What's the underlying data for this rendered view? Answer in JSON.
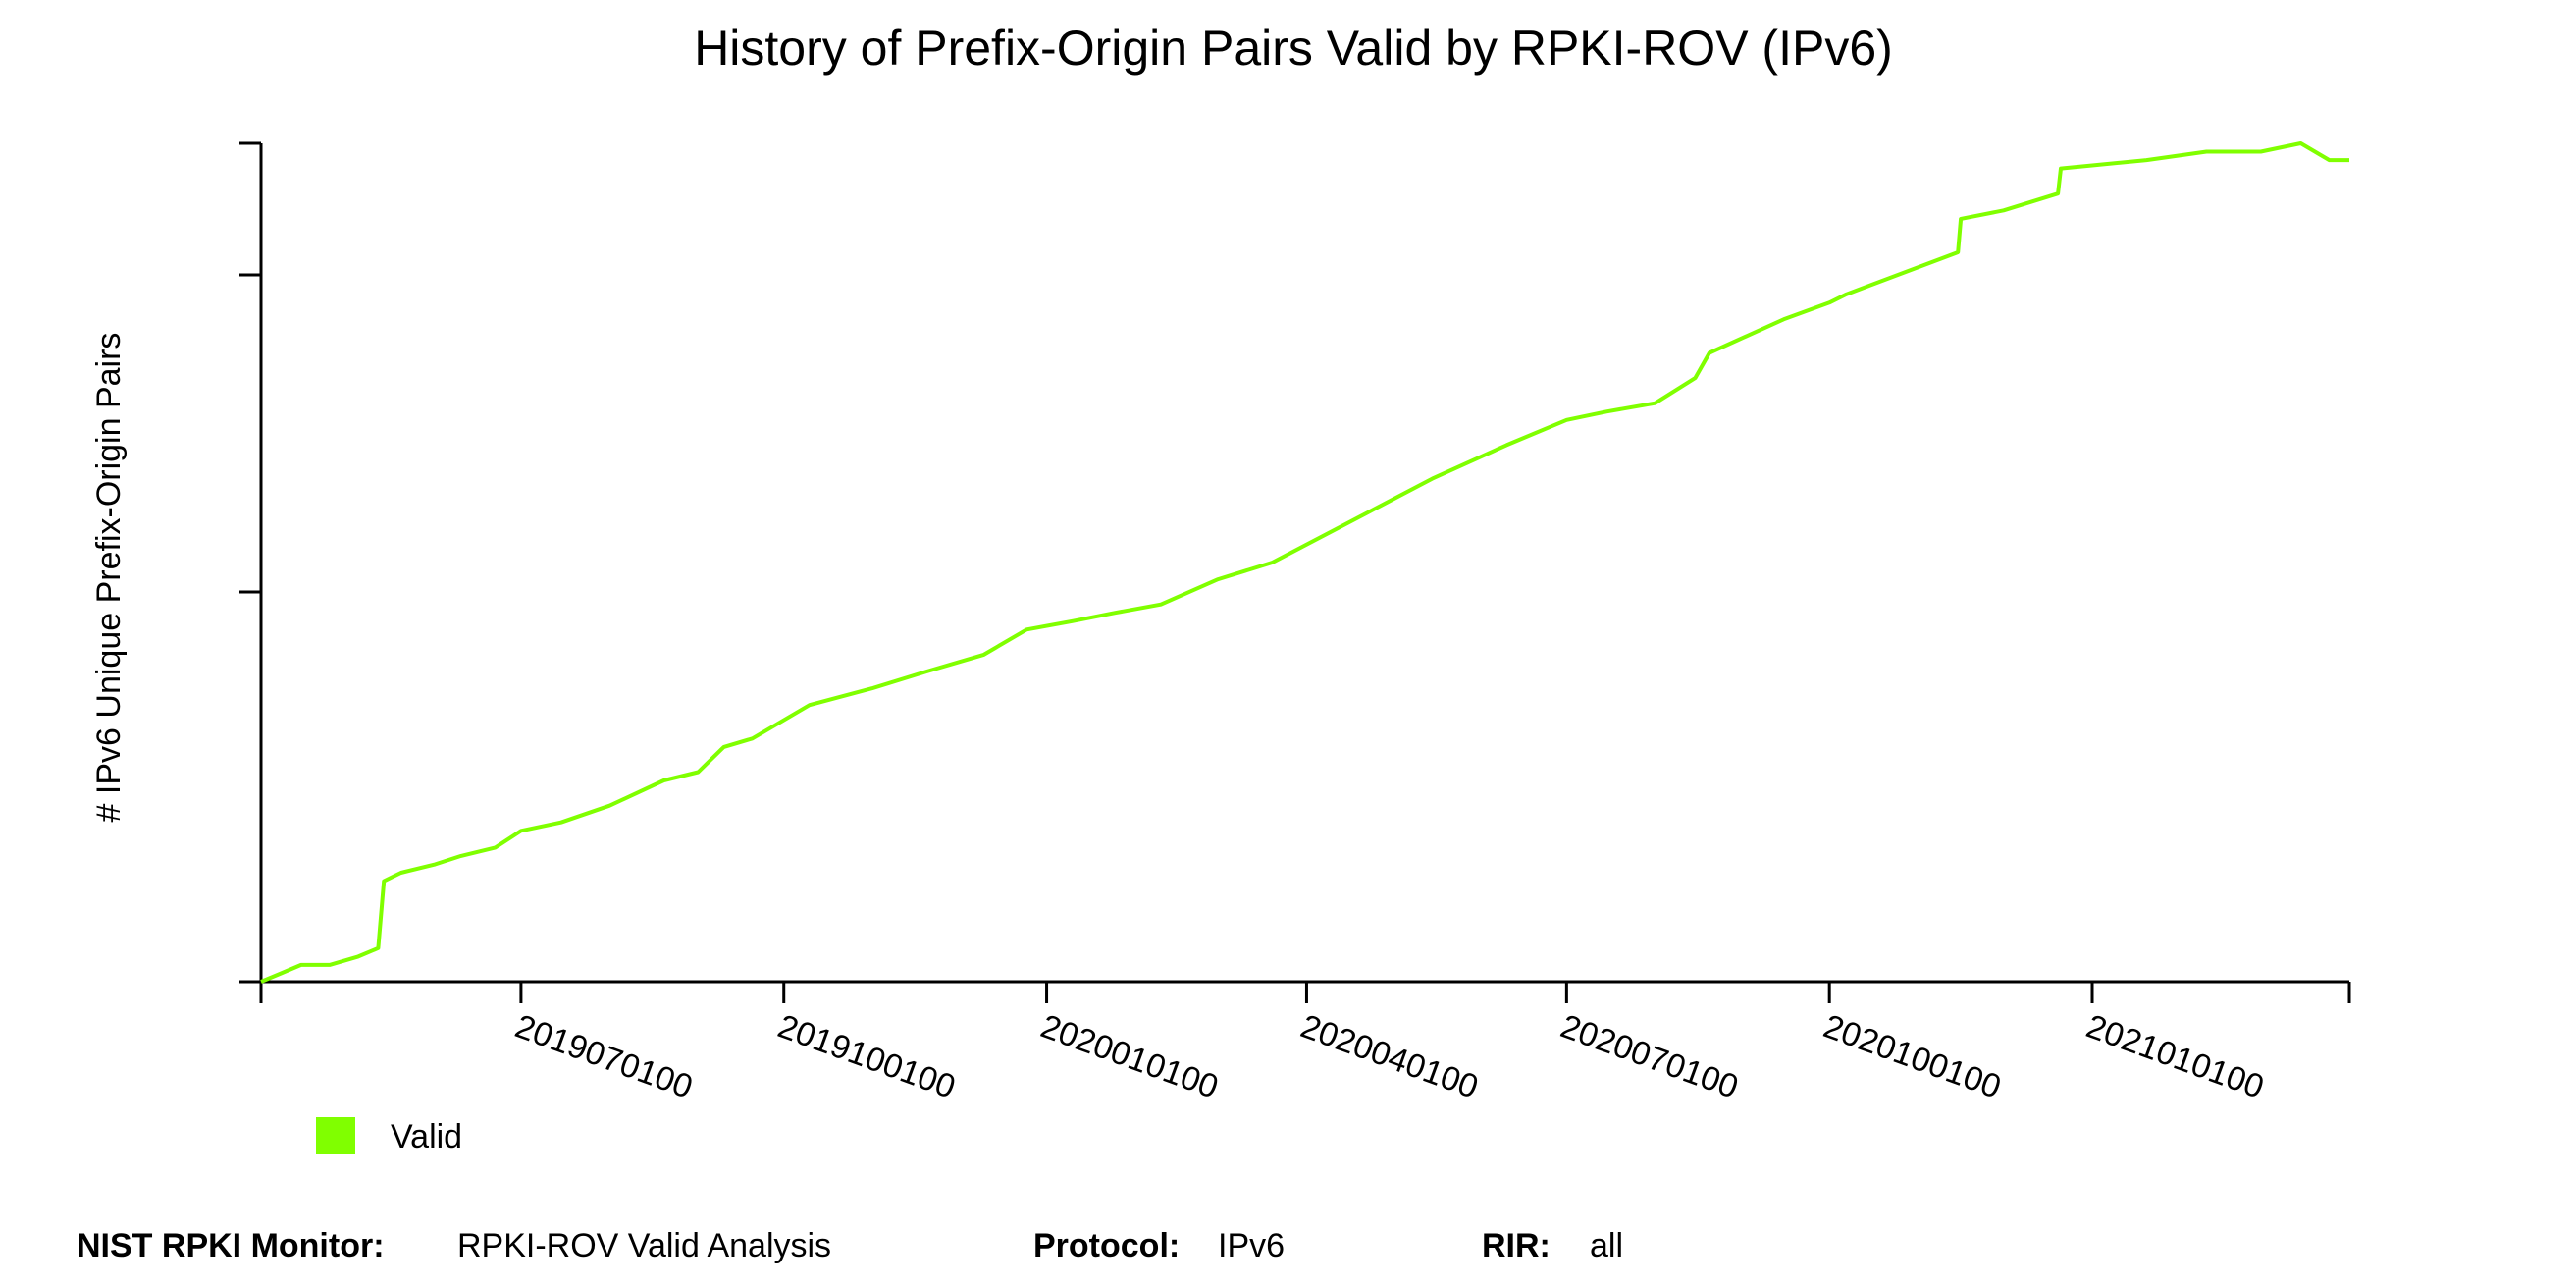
{
  "chart_data": {
    "type": "line",
    "title": "History of Prefix-Origin Pairs Valid by RPKI-ROV (IPv6)",
    "ylabel": "# IPv6 Unique Prefix-Origin Pairs",
    "xlabel": "",
    "x_tick_labels": [
      "2019070100",
      "2019100100",
      "2020010100",
      "2020040100",
      "2020070100",
      "2020100100",
      "2021010100"
    ],
    "y_tick_labels": [],
    "xlim": [
      "2019-04-01",
      "2021-04-01"
    ],
    "ylim": [
      0,
      100
    ],
    "grid": false,
    "legend": "bottom-left",
    "series": [
      {
        "name": "Valid",
        "color": "#80ff00",
        "x": [
          "2019-04-01",
          "2019-04-08",
          "2019-04-15",
          "2019-04-25",
          "2019-05-05",
          "2019-05-12",
          "2019-05-14",
          "2019-05-20",
          "2019-06-01",
          "2019-06-10",
          "2019-06-22",
          "2019-07-01",
          "2019-07-15",
          "2019-08-01",
          "2019-08-20",
          "2019-09-01",
          "2019-09-10",
          "2019-09-20",
          "2019-10-10",
          "2019-11-01",
          "2019-11-20",
          "2019-12-10",
          "2019-12-25",
          "2020-01-10",
          "2020-01-25",
          "2020-02-10",
          "2020-03-01",
          "2020-03-20",
          "2020-05-15",
          "2020-06-10",
          "2020-07-01",
          "2020-07-15",
          "2020-08-01",
          "2020-08-15",
          "2020-08-20",
          "2020-09-15",
          "2020-10-01",
          "2020-10-07",
          "2020-11-15",
          "2020-11-16",
          "2020-12-01",
          "2020-12-20",
          "2020-12-21",
          "2021-01-20",
          "2021-02-10",
          "2021-03-01",
          "2021-03-15",
          "2021-03-25",
          "2021-04-01"
        ],
        "y": [
          0,
          1,
          2,
          2,
          3,
          4,
          12,
          13,
          14,
          15,
          16,
          18,
          19,
          21,
          24,
          25,
          28,
          29,
          33,
          35,
          37,
          39,
          42,
          43,
          44,
          45,
          48,
          50,
          60,
          64,
          67,
          68,
          69,
          72,
          75,
          79,
          81,
          82,
          87,
          91,
          92,
          94,
          97,
          98,
          99,
          99,
          100,
          98,
          98
        ]
      }
    ]
  },
  "footer": {
    "monitor_label": "NIST RPKI Monitor:",
    "monitor_value": "RPKI-ROV Valid Analysis",
    "protocol_label": "Protocol:",
    "protocol_value": "IPv6",
    "rir_label": "RIR:",
    "rir_value": "all"
  }
}
